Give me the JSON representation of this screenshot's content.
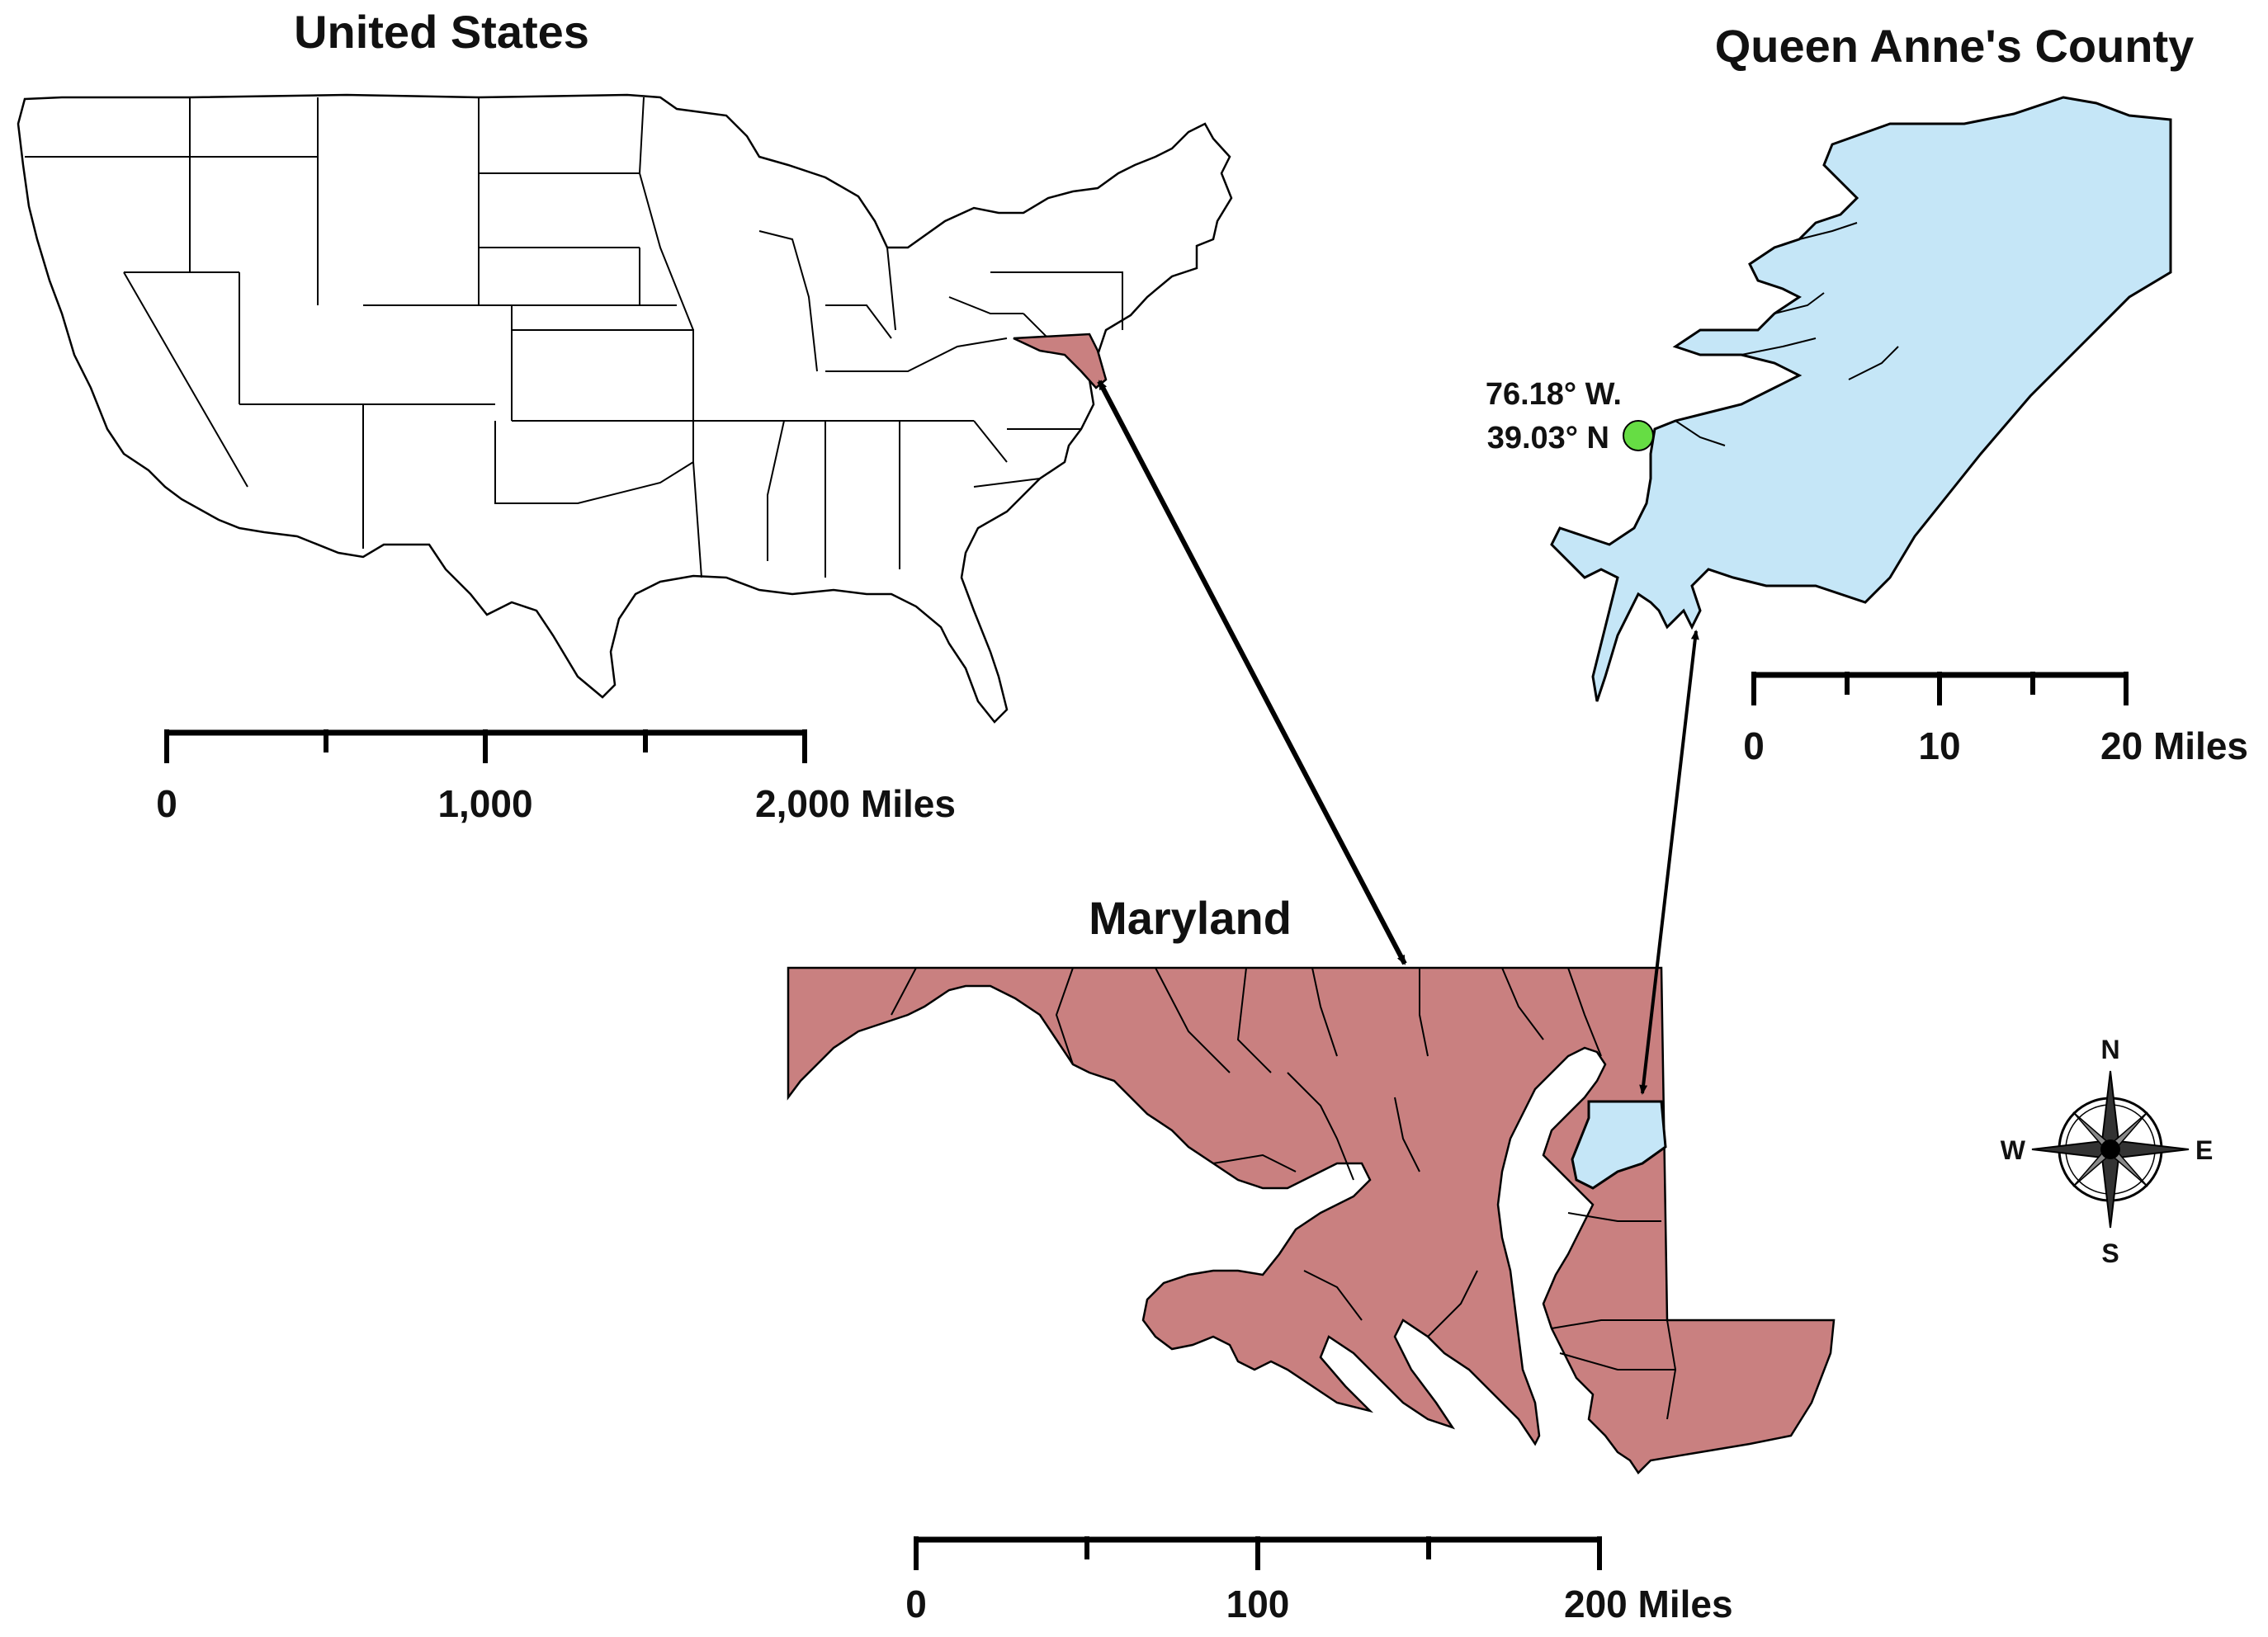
{
  "us_map": {
    "title": "United States",
    "scale": {
      "ticks": [
        "0",
        "1,000",
        "2,000 Miles"
      ]
    }
  },
  "qa_map": {
    "title": "Queen Anne's County",
    "coord_lon": "76.18° W.",
    "coord_lat": "39.03° N",
    "scale": {
      "ticks": [
        "0",
        "10",
        "20 Miles"
      ]
    },
    "fill_color": "#c5e6f7",
    "point_color": "#66dd44"
  },
  "md_map": {
    "title": "Maryland",
    "scale": {
      "ticks": [
        "0",
        "100",
        "200 Miles"
      ]
    },
    "fill_color": "#c98080"
  },
  "compass": {
    "n": "N",
    "s": "S",
    "e": "E",
    "w": "W"
  }
}
